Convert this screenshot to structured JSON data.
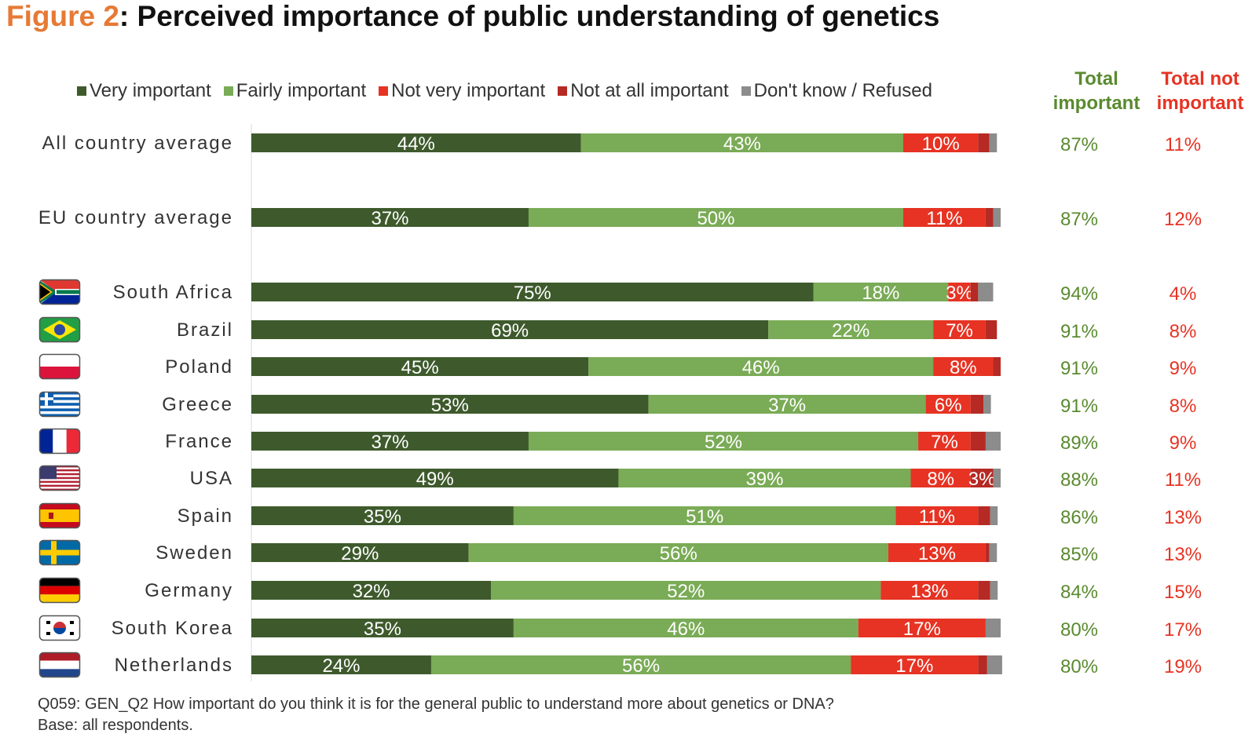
{
  "title": {
    "figure_label": "Figure 2",
    "text": ": Perceived importance of public understanding of genetics"
  },
  "colors": {
    "very": "#3e5a2c",
    "fairly": "#7aab56",
    "notvery": "#e63323",
    "notatall": "#b52a24",
    "dontknow": "#8c8c8c",
    "total_important": "#5a8a2f",
    "total_not_important": "#e63323"
  },
  "headers": {
    "total_important": "Total important",
    "total_not_important": "Total not important"
  },
  "footnote": {
    "question": "Q059: GEN_Q2 How important do you think it is for the general public to understand more about genetics or DNA?",
    "base": "Base: all respondents."
  },
  "chart_data": {
    "type": "bar",
    "orientation": "horizontal",
    "stacked": true,
    "xlim": [
      0,
      100
    ],
    "categories": [
      "All country average",
      "EU country average",
      "South Africa",
      "Brazil",
      "Poland",
      "Greece",
      "France",
      "USA",
      "Spain",
      "Sweden",
      "Germany",
      "South Korea",
      "Netherlands"
    ],
    "flags": [
      null,
      null,
      "south-africa",
      "brazil",
      "poland",
      "greece",
      "france",
      "usa",
      "spain",
      "sweden",
      "germany",
      "south-korea",
      "netherlands"
    ],
    "series": [
      {
        "name": "Very important",
        "color": "#3e5a2c",
        "values": [
          44,
          37,
          75,
          69,
          45,
          53,
          37,
          49,
          35,
          29,
          32,
          35,
          24
        ],
        "labels": [
          "44%",
          "37%",
          "75%",
          "69%",
          "45%",
          "53%",
          "37%",
          "49%",
          "35%",
          "29%",
          "32%",
          "35%",
          "24%"
        ]
      },
      {
        "name": "Fairly important",
        "color": "#7aab56",
        "values": [
          43,
          50,
          18,
          22,
          46,
          37,
          52,
          39,
          51,
          56,
          52,
          46,
          56
        ],
        "labels": [
          "43%",
          "50%",
          "18%",
          "22%",
          "46%",
          "37%",
          "52%",
          "39%",
          "51%",
          "56%",
          "52%",
          "46%",
          "56%"
        ]
      },
      {
        "name": "Not very important",
        "color": "#e63323",
        "values": [
          10,
          11,
          3,
          7,
          8,
          6,
          7,
          8,
          11,
          13,
          13,
          17,
          17
        ],
        "labels": [
          "10%",
          "11%",
          "3%",
          "7%",
          "8%",
          "6%",
          "7%",
          "8%",
          "11%",
          "13%",
          "13%",
          "17%",
          "17%"
        ]
      },
      {
        "name": "Not at all important",
        "color": "#b52a24",
        "values": [
          1.5,
          1,
          1,
          1.5,
          1,
          1.7,
          2,
          3,
          1.6,
          0.5,
          1.6,
          0,
          1.2
        ],
        "labels": [
          "",
          "",
          "",
          "",
          "",
          "",
          "",
          "3%",
          "",
          "",
          "",
          "",
          ""
        ]
      },
      {
        "name": "Don't know / Refused",
        "color": "#8c8c8c",
        "values": [
          1,
          1,
          2,
          0,
          0,
          1,
          2,
          1,
          1,
          1,
          1,
          2,
          2
        ],
        "labels": [
          "",
          "",
          "",
          "",
          "",
          "",
          "",
          "",
          "",
          "",
          "",
          "",
          ""
        ]
      }
    ],
    "total_important": [
      "87%",
      "87%",
      "94%",
      "91%",
      "91%",
      "91%",
      "89%",
      "88%",
      "86%",
      "85%",
      "84%",
      "80%",
      "80%"
    ],
    "total_not_important": [
      "11%",
      "12%",
      "4%",
      "8%",
      "9%",
      "8%",
      "9%",
      "11%",
      "13%",
      "13%",
      "15%",
      "17%",
      "19%"
    ],
    "legend": {
      "position": "top"
    }
  }
}
